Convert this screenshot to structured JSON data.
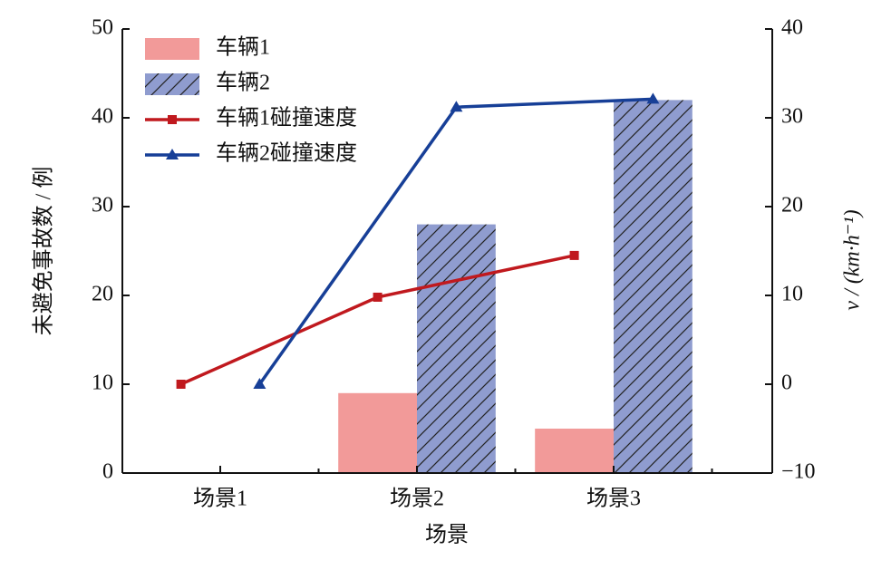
{
  "chart_data": {
    "type": "bar",
    "categories": [
      "场景1",
      "场景2",
      "场景3"
    ],
    "xlabel": "场景",
    "ylabel": "未避免事故数 / 例",
    "y2label": "v / (km·h⁻¹)",
    "ylim": [
      0,
      50
    ],
    "yticks": [
      0,
      10,
      20,
      30,
      40,
      50
    ],
    "y2lim": [
      -10,
      40
    ],
    "y2ticks": [
      {
        "value": -10,
        "label": "−10"
      },
      0,
      10,
      20,
      30,
      40
    ],
    "legend": "upper left",
    "series": [
      {
        "name": "车辆1",
        "type": "bar",
        "color": "#f29a99",
        "values": [
          0,
          9,
          5
        ]
      },
      {
        "name": "车辆2",
        "type": "bar",
        "color": "#8f9ccf",
        "hatch": true,
        "values": [
          0,
          28,
          42
        ]
      },
      {
        "name": "车辆1碰撞速度",
        "type": "line",
        "axis": "y2",
        "color": "#c0191e",
        "marker": "square",
        "values": [
          0,
          9.8,
          14.5
        ]
      },
      {
        "name": "车辆2碰撞速度",
        "type": "line",
        "axis": "y2",
        "color": "#173f97",
        "marker": "triangle",
        "values": [
          0,
          31.2,
          32.1
        ]
      }
    ]
  }
}
